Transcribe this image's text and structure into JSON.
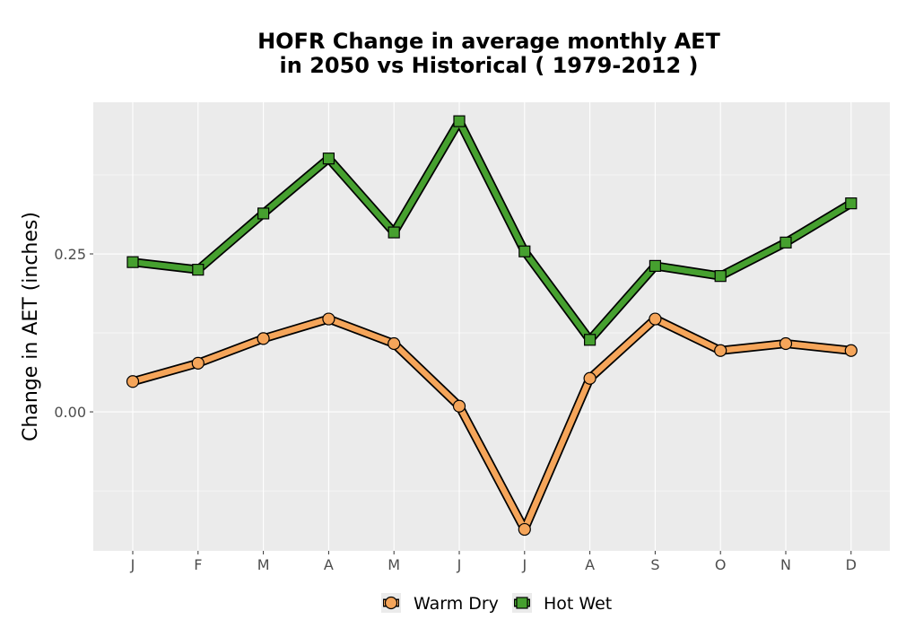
{
  "chart_data": {
    "type": "line",
    "title_line1": "HOFR  Change in average monthly AET",
    "title_line2": "in 2050 vs Historical ( 1979-2012 )",
    "xlabel": "",
    "ylabel": "Change in AET (inches)",
    "categories": [
      "J",
      "F",
      "M",
      "A",
      "M",
      "J",
      "J",
      "A",
      "S",
      "O",
      "N",
      "D"
    ],
    "yticks": [
      "0.00",
      "0.25"
    ],
    "ylim": [
      -0.22,
      0.49
    ],
    "grid": true,
    "legend_position": "bottom",
    "series": [
      {
        "name": "Warm Dry",
        "marker": "circle",
        "color": "#f5a55a",
        "values": [
          0.048,
          0.077,
          0.116,
          0.147,
          0.108,
          0.009,
          -0.186,
          0.053,
          0.147,
          0.097,
          0.108,
          0.097
        ]
      },
      {
        "name": "Hot Wet",
        "marker": "square",
        "color": "#46a02f",
        "values": [
          0.237,
          0.225,
          0.314,
          0.401,
          0.284,
          0.46,
          0.254,
          0.114,
          0.231,
          0.215,
          0.268,
          0.33
        ]
      }
    ],
    "colors": {
      "panel": "#ebebeb",
      "grid": "#ffffff",
      "outline": "#000000"
    }
  }
}
